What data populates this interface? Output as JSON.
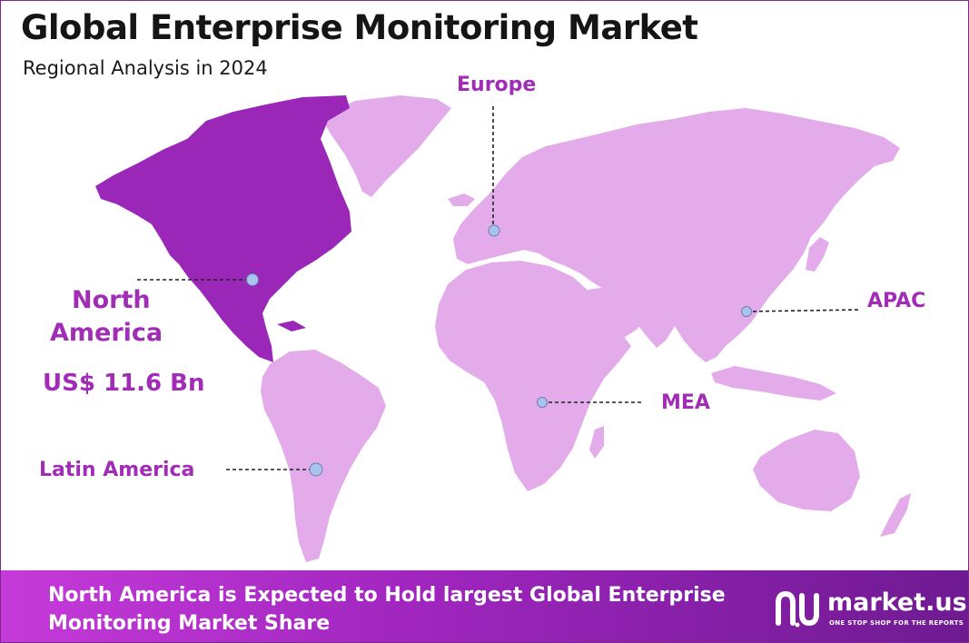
{
  "header": {
    "title": "Global Enterprise Monitoring Market",
    "subtitle": "Regional Analysis in 2024"
  },
  "regions": {
    "north_america": {
      "name_line1": "North",
      "name_line2": "America",
      "value": "US$ 11.6 Bn",
      "highlighted": true
    },
    "europe": {
      "name": "Europe"
    },
    "apac": {
      "name": "APAC"
    },
    "mea": {
      "name": "MEA"
    },
    "latin_america": {
      "name": "Latin America"
    }
  },
  "footer": {
    "text": "North America is Expected to Hold largest Global Enterprise Monitoring Market Share"
  },
  "brand": {
    "name": "market.us",
    "tagline": "ONE STOP SHOP FOR THE REPORTS"
  },
  "colors": {
    "highlight_region": "#9a27b8",
    "other_regions": "#e3abea",
    "label_text": "#a12cb5",
    "marker": "#a9c3ee",
    "footer_gradient_start": "#c53ad9",
    "footer_gradient_end": "#6f1a92"
  }
}
